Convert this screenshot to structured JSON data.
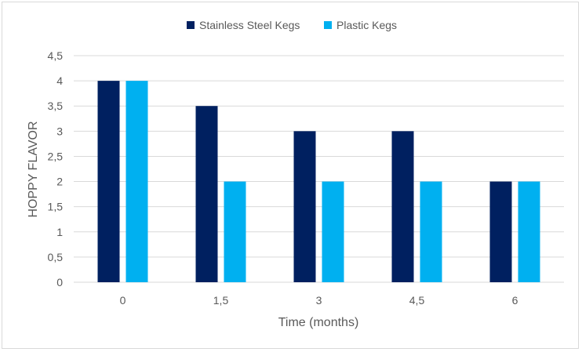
{
  "chart_data": {
    "type": "bar",
    "categories": [
      "0",
      "1,5",
      "3",
      "4,5",
      "6"
    ],
    "series": [
      {
        "name": "Stainless Steel Kegs",
        "values": [
          4,
          3.5,
          3,
          3,
          2
        ],
        "color": "#002060"
      },
      {
        "name": "Plastic Kegs",
        "values": [
          4,
          2,
          2,
          2,
          2
        ],
        "color": "#00b0f0"
      }
    ],
    "xlabel": "Time (months)",
    "ylabel": "HOPPY FLAVOR",
    "ylim": [
      0,
      4.5
    ],
    "yticks": [
      "0",
      "0,5",
      "1",
      "1,5",
      "2",
      "2,5",
      "3",
      "3,5",
      "4",
      "4,5"
    ],
    "grid": true,
    "legend_position": "top-center"
  }
}
